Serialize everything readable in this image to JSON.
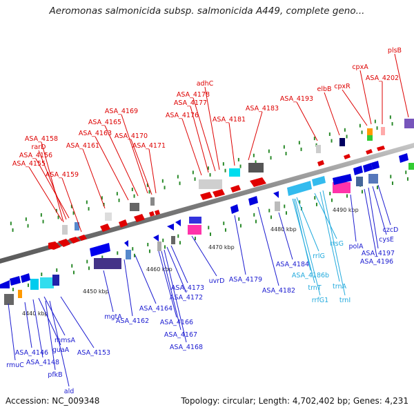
{
  "title": "Aeromonas salmonicida subsp. salmonicida A449, complete geno...",
  "footer": {
    "accession": "Accession: NC_009348",
    "topology": "Topology: circular; Length: 4,702,402 bp; Genes: 4,231"
  },
  "colors": {
    "forward_label": "#dd0000",
    "reverse_label": "#1a1ad0",
    "rna_label": "#22aadd",
    "backbone": "#8c8c8c",
    "tick": "#2a8a2a"
  },
  "ticks": [
    {
      "kbp": 4440,
      "label": "4440 kbp"
    },
    {
      "kbp": 4450,
      "label": "4450 kbp"
    },
    {
      "kbp": 4460,
      "label": "4460 kbp"
    },
    {
      "kbp": 4470,
      "label": "4470 kbp"
    },
    {
      "kbp": 4480,
      "label": "4480 kbp"
    },
    {
      "kbp": 4490,
      "label": "4490 kbp"
    }
  ],
  "forward_labels": [
    "ASA_4158",
    "rarD",
    "ASA_4156",
    "ASA_4155",
    "ASA_4159",
    "ASA_4161",
    "ASA_4163",
    "ASA_4165",
    "ASA_4169",
    "ASA_4170",
    "ASA_4171",
    "ASA_4176",
    "ASA_4177",
    "ASA_4178",
    "adhC",
    "ASA_4181",
    "ASA_4183",
    "ASA_4193",
    "elbB",
    "cpxR",
    "cpxA",
    "ASA_4202",
    "plsB"
  ],
  "reverse_labels": [
    "rmuC",
    "ASA_4146",
    "ASA_4148",
    "guaA",
    "mmsA",
    "pfkB",
    "ald",
    "ASA_4153",
    "mgtA",
    "ASA_4162",
    "ASA_4164",
    "ASA_4166",
    "ASA_4167",
    "ASA_4168",
    "ASA_4173",
    "ASA_4172",
    "uvrD",
    "ASA_4179",
    "ASA_4182",
    "ASA_4184",
    "polA",
    "ASA_4197",
    "ASA_4196",
    "cysE",
    "czcD"
  ],
  "rna_labels": [
    "rrlG",
    "rrsG",
    "ASA_4186b",
    "trnT",
    "rrfG1",
    "trnA",
    "trnI"
  ]
}
